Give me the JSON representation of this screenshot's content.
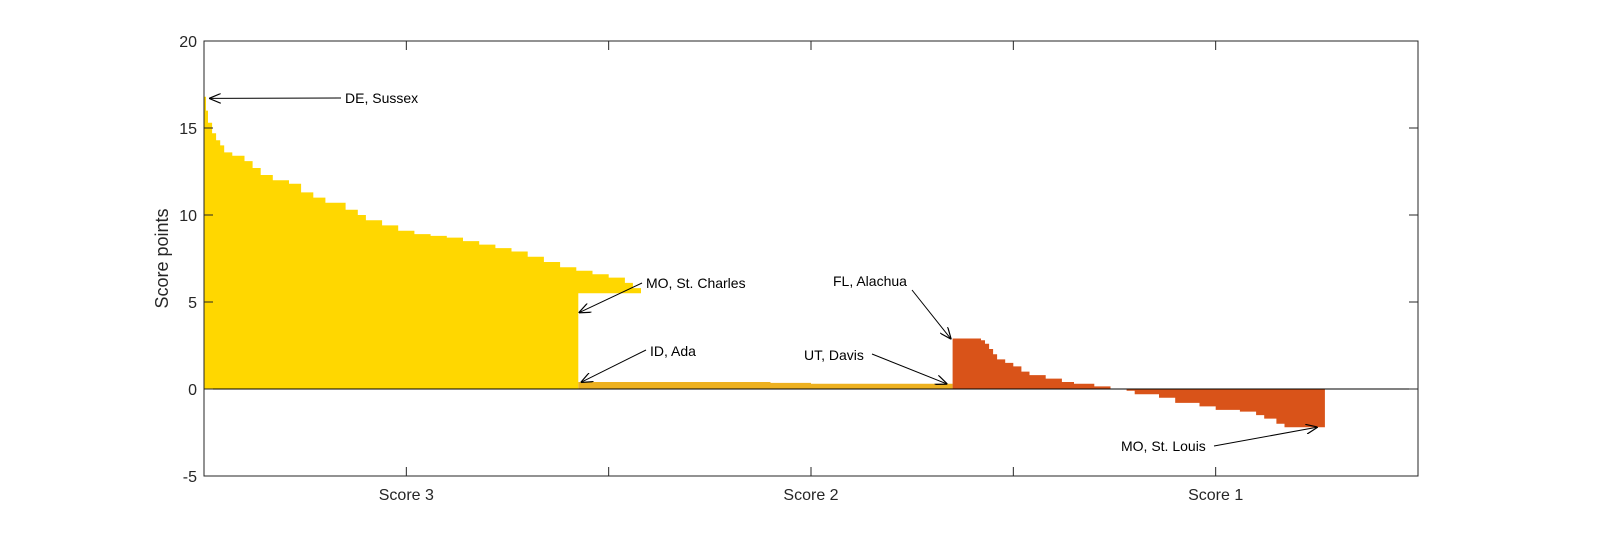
{
  "chart_data": {
    "type": "area",
    "ylabel": "Score points",
    "ylim": [
      -5,
      20
    ],
    "yticks": [
      -5,
      0,
      5,
      10,
      15,
      20
    ],
    "x_range": [
      0,
      300
    ],
    "categories": [
      {
        "label": "Score 3",
        "center": 50
      },
      {
        "label": "Score 2",
        "center": 150
      },
      {
        "label": "Score 1",
        "center": 250
      }
    ],
    "minor_ticks_x": [
      100,
      200
    ],
    "zero_line": true,
    "grid": false,
    "series": [
      {
        "color": "#FFD700",
        "points": [
          [
            0,
            16.8
          ],
          [
            0.5,
            16.0
          ],
          [
            1,
            15.3
          ],
          [
            2,
            14.7
          ],
          [
            3,
            14.3
          ],
          [
            4,
            14.0
          ],
          [
            5,
            13.6
          ],
          [
            7,
            13.4
          ],
          [
            10,
            13.1
          ],
          [
            12,
            12.7
          ],
          [
            14,
            12.3
          ],
          [
            17,
            12.0
          ],
          [
            21,
            11.8
          ],
          [
            24,
            11.3
          ],
          [
            27,
            11.0
          ],
          [
            30,
            10.7
          ],
          [
            35,
            10.3
          ],
          [
            38,
            10.0
          ],
          [
            40,
            9.7
          ],
          [
            44,
            9.4
          ],
          [
            48,
            9.1
          ],
          [
            52,
            8.9
          ],
          [
            56,
            8.8
          ],
          [
            60,
            8.7
          ],
          [
            64,
            8.5
          ],
          [
            68,
            8.3
          ],
          [
            72,
            8.1
          ],
          [
            76,
            7.9
          ],
          [
            80,
            7.6
          ],
          [
            84,
            7.3
          ],
          [
            88,
            7.0
          ],
          [
            92,
            6.8
          ],
          [
            96,
            6.6
          ],
          [
            100,
            6.4
          ],
          [
            104,
            6.1
          ],
          [
            106,
            5.8
          ],
          [
            108,
            5.5
          ],
          [
            92.5,
            5.4
          ]
        ],
        "end_x": 92.5
      },
      {
        "color": "#EDB120",
        "points": [
          [
            92.5,
            0.4
          ],
          [
            140,
            0.35
          ],
          [
            150,
            0.3
          ],
          [
            185,
            0.3
          ]
        ],
        "end_x": 185
      },
      {
        "color": "#D95319",
        "points": [
          [
            185,
            2.9
          ],
          [
            192,
            2.8
          ],
          [
            193,
            2.6
          ],
          [
            194,
            2.3
          ],
          [
            195,
            2.0
          ],
          [
            196,
            1.7
          ],
          [
            198,
            1.5
          ],
          [
            200,
            1.3
          ],
          [
            202,
            1.0
          ],
          [
            204,
            0.8
          ],
          [
            208,
            0.6
          ],
          [
            212,
            0.4
          ],
          [
            215,
            0.3
          ],
          [
            220,
            0.15
          ],
          [
            224,
            0.0
          ],
          [
            228,
            -0.1
          ],
          [
            230,
            -0.3
          ],
          [
            236,
            -0.5
          ],
          [
            240,
            -0.8
          ],
          [
            246,
            -1.0
          ],
          [
            250,
            -1.2
          ],
          [
            256,
            -1.3
          ],
          [
            260,
            -1.5
          ],
          [
            262,
            -1.7
          ],
          [
            265,
            -2.0
          ],
          [
            267,
            -2.2
          ]
        ],
        "end_x": 277
      }
    ],
    "annotations": [
      {
        "text": "DE, Sussex",
        "target": [
          1.5,
          16.7
        ]
      },
      {
        "text": "MO, St. Charles",
        "target": [
          92.8,
          4.4
        ]
      },
      {
        "text": "ID, Ada",
        "target": [
          93.3,
          0.4
        ]
      },
      {
        "text": "FL, Alachua",
        "target": [
          184.5,
          2.9
        ]
      },
      {
        "text": "UT, Davis",
        "target": [
          183.5,
          0.3
        ]
      },
      {
        "text": "MO, St. Louis",
        "target": [
          275,
          -2.2
        ]
      }
    ]
  }
}
